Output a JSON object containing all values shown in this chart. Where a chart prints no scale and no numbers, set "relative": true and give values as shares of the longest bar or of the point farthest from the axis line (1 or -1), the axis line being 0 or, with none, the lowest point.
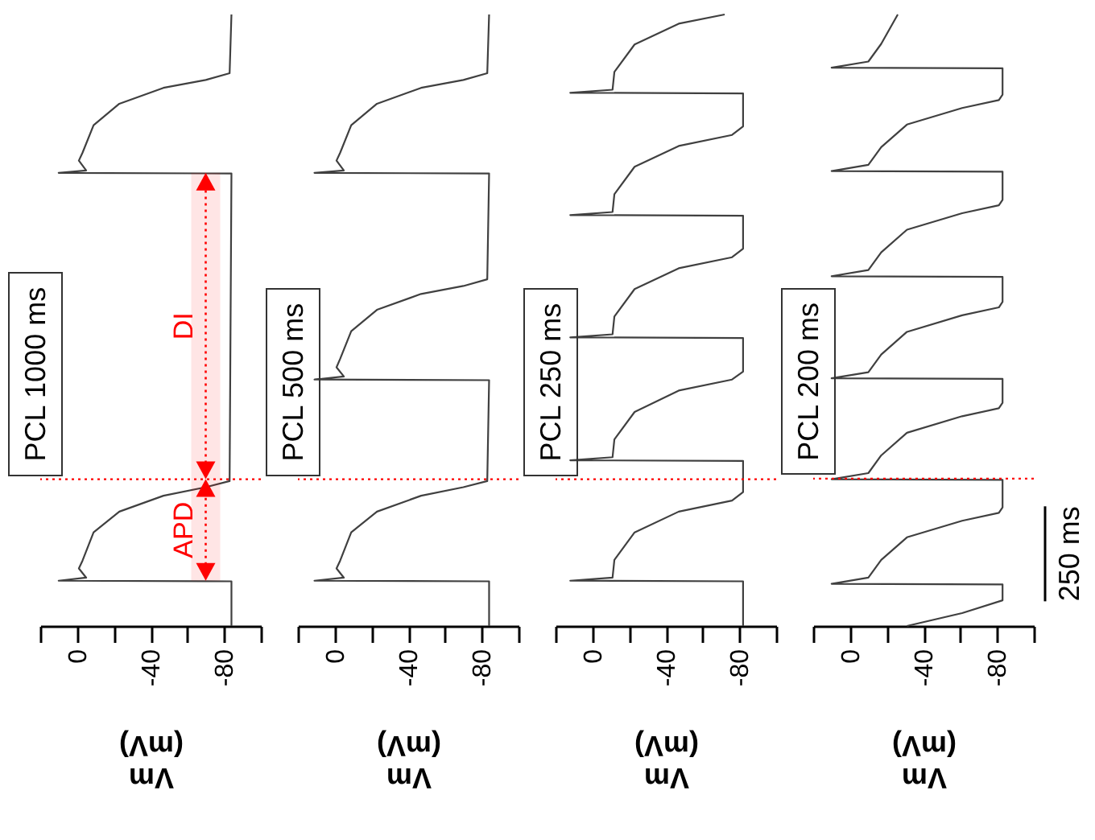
{
  "chart_data": [
    {
      "type": "line",
      "relative": true,
      "xlabel": "Vm\n(mV)",
      "annotations": [
        "PCL 1000 ms"
      ],
      "xlim": [
        20,
        -100
      ],
      "xticks": [
        {
          "value": 20,
          "label": null
        },
        0,
        {
          "value": -20,
          "label": null
        },
        -40,
        {
          "value": -60,
          "label": null
        },
        -80,
        {
          "value": -100,
          "label": null
        }
      ],
      "tick_labels": "x",
      "ref_lines": [
        {
          "axis": "y",
          "value": 0.24,
          "color": "#ff0000",
          "line_style": "dotted"
        }
      ],
      "bands": [
        {
          "axis": "y",
          "from": 0.074,
          "to": 0.24,
          "label": "APD",
          "color": "#ff0000"
        },
        {
          "axis": "y",
          "from": 0.24,
          "to": 0.741,
          "label": "DI",
          "color": "#ff0000"
        }
      ],
      "series": [
        {
          "color": "#404040",
          "x": [
            -84,
            -84,
            10,
            -5,
            -1,
            -3,
            -9,
            -23,
            -47,
            -70,
            -83,
            -84,
            10,
            -5,
            -1,
            -3,
            -9,
            -23,
            -47,
            -70,
            -83,
            -84
          ],
          "values": [
            0,
            0.073,
            0.074,
            0.079,
            0.094,
            0.107,
            0.153,
            0.187,
            0.213,
            0.227,
            0.237,
            0.74,
            0.741,
            0.745,
            0.761,
            0.774,
            0.819,
            0.854,
            0.88,
            0.893,
            0.904,
            1
          ]
        }
      ]
    },
    {
      "type": "line",
      "relative": true,
      "xlabel": "Vm\n(mV)",
      "annotations": [
        "PCL 500 ms"
      ],
      "xlim": [
        20,
        -100
      ],
      "xticks": [
        {
          "value": 20,
          "label": null
        },
        0,
        {
          "value": -20,
          "label": null
        },
        -40,
        {
          "value": -60,
          "label": null
        },
        -80,
        {
          "value": -100,
          "label": null
        }
      ],
      "tick_labels": "x",
      "ref_lines": [
        {
          "axis": "y",
          "value": 0.24,
          "color": "#ff0000",
          "line_style": "dotted"
        }
      ],
      "series": [
        {
          "color": "#404040",
          "x": [
            -84,
            -84,
            11,
            -5,
            -1,
            -3,
            -9,
            -23,
            -47,
            -70,
            -83,
            -84,
            11,
            -5,
            -1,
            -3,
            -9,
            -23,
            -47,
            -70,
            -83,
            -84,
            11,
            -5,
            -1,
            -3,
            -9,
            -23,
            -47,
            -70,
            -83,
            -84
          ],
          "values": [
            0,
            0.073,
            0.074,
            0.079,
            0.094,
            0.107,
            0.153,
            0.187,
            0.213,
            0.227,
            0.237,
            0.402,
            0.403,
            0.408,
            0.423,
            0.437,
            0.482,
            0.517,
            0.543,
            0.556,
            0.567,
            0.74,
            0.741,
            0.745,
            0.761,
            0.774,
            0.819,
            0.854,
            0.88,
            0.893,
            0.904,
            1
          ]
        }
      ]
    },
    {
      "type": "line",
      "relative": true,
      "xlabel": "Vm\n(mV)",
      "annotations": [
        "PCL 250 ms"
      ],
      "xlim": [
        20,
        -100
      ],
      "xticks": [
        {
          "value": 20,
          "label": null
        },
        0,
        {
          "value": -20,
          "label": null
        },
        -40,
        {
          "value": -60,
          "label": null
        },
        -80,
        {
          "value": -100,
          "label": null
        }
      ],
      "tick_labels": "x",
      "ref_lines": [
        {
          "axis": "y",
          "value": 0.24,
          "color": "#ff0000",
          "line_style": "dotted"
        }
      ],
      "series": [
        {
          "color": "#404040",
          "x": [
            -82,
            -82,
            12,
            -11,
            -12,
            -23,
            -47,
            -76,
            -82,
            -82,
            12,
            -11,
            -12,
            -23,
            -47,
            -76,
            -82,
            -82,
            12,
            -11,
            -12,
            -23,
            -47,
            -76,
            -82,
            -82,
            12,
            -11,
            -12,
            -23,
            -47,
            -76,
            -82,
            -82,
            12,
            -11,
            -12,
            -23,
            -47,
            -72
          ],
          "values": [
            0,
            0.073,
            0.074,
            0.079,
            0.108,
            0.153,
            0.187,
            0.205,
            0.219,
            0.27,
            0.271,
            0.276,
            0.305,
            0.35,
            0.385,
            0.403,
            0.416,
            0.471,
            0.472,
            0.477,
            0.506,
            0.551,
            0.585,
            0.603,
            0.617,
            0.671,
            0.672,
            0.677,
            0.706,
            0.751,
            0.785,
            0.803,
            0.817,
            0.871,
            0.872,
            0.877,
            0.906,
            0.951,
            0.985,
            1
          ]
        }
      ]
    },
    {
      "type": "line",
      "relative": true,
      "xlabel": "Vm\n(mV)",
      "annotations": [
        "PCL 200 ms",
        "250 ms"
      ],
      "xlim": [
        20,
        -100
      ],
      "xticks": [
        {
          "value": 20,
          "label": null
        },
        0,
        {
          "value": -20,
          "label": null
        },
        -40,
        {
          "value": -60,
          "label": null
        },
        -80,
        {
          "value": -100,
          "label": null
        }
      ],
      "tick_labels": "x",
      "ref_lines": [
        {
          "axis": "y",
          "value": 0.241,
          "color": "#ff0000",
          "line_style": "dotted"
        }
      ],
      "series": [
        {
          "color": "#404040",
          "x": [
            -31,
            -61,
            -83,
            -83,
            10,
            -10,
            -17,
            -31,
            -61,
            -81,
            -83,
            -83,
            10,
            -10,
            -17,
            -31,
            -61,
            -81,
            -83,
            -83,
            10,
            -10,
            -17,
            -31,
            -61,
            -81,
            -83,
            -83,
            10,
            -10,
            -17,
            -31,
            -61,
            -81,
            -83,
            -83,
            10,
            -10,
            -17,
            -31,
            -61,
            -81,
            -83,
            -83,
            10,
            -10,
            -17,
            -26
          ],
          "values": [
            0,
            0.021,
            0.042,
            0.068,
            0.069,
            0.079,
            0.108,
            0.145,
            0.172,
            0.185,
            0.194,
            0.239,
            0.24,
            0.25,
            0.279,
            0.316,
            0.343,
            0.356,
            0.365,
            0.404,
            0.405,
            0.415,
            0.444,
            0.481,
            0.508,
            0.521,
            0.53,
            0.571,
            0.572,
            0.582,
            0.611,
            0.648,
            0.675,
            0.688,
            0.697,
            0.743,
            0.744,
            0.754,
            0.783,
            0.82,
            0.847,
            0.86,
            0.869,
            0.912,
            0.913,
            0.923,
            0.952,
            1
          ]
        }
      ]
    }
  ]
}
